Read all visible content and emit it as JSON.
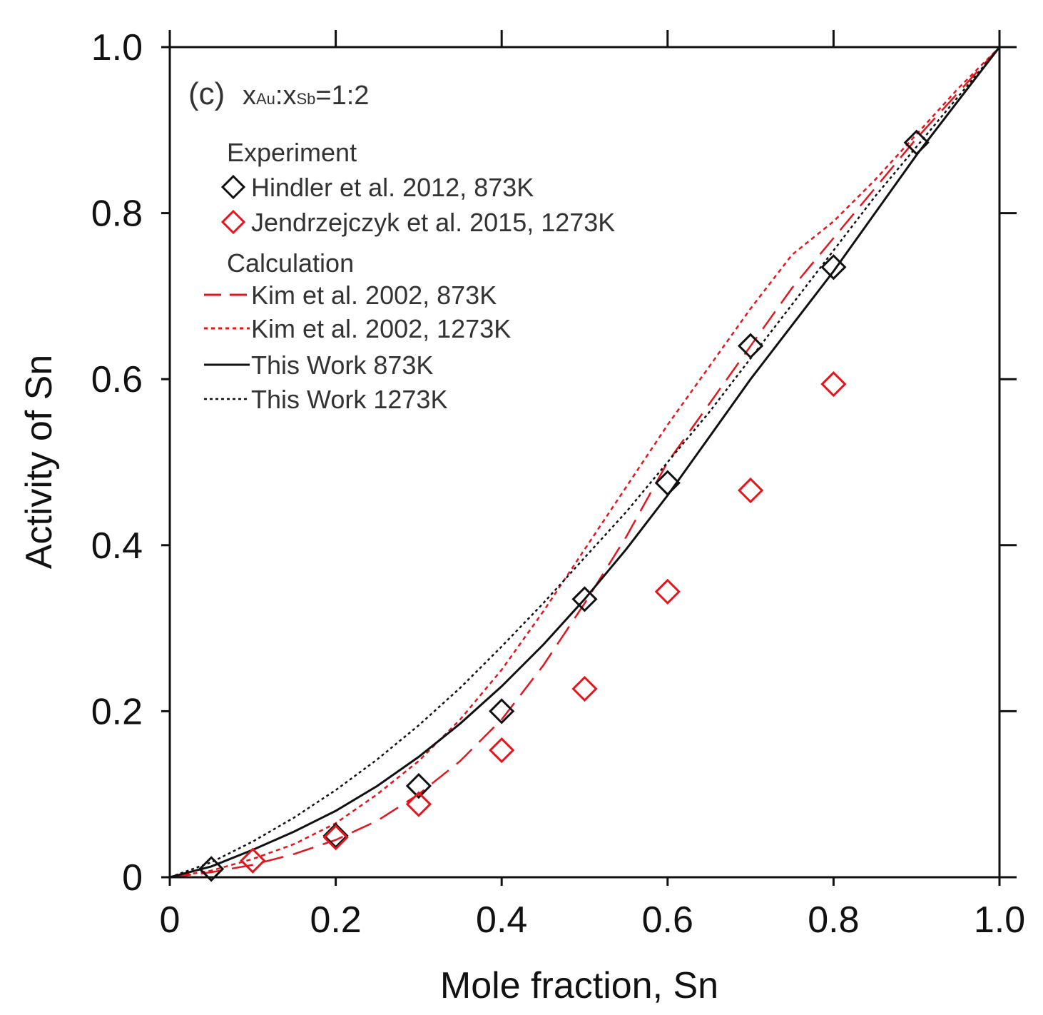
{
  "chart_data": {
    "type": "line",
    "panel_label": "(c)",
    "composition_prefix": "x",
    "composition_sub1": "Au",
    "composition_sep": ":x",
    "composition_sub2": "Sb",
    "composition_value": "=1:2",
    "xlabel": "Mole fraction, Sn",
    "ylabel": "Activity of Sn",
    "xlim": [
      0,
      1
    ],
    "ylim": [
      0,
      1
    ],
    "x_ticks": [
      0,
      0.2,
      0.4,
      0.6,
      0.8,
      1.0
    ],
    "x_tick_labels": [
      "0",
      "0.2",
      "0.4",
      "0.6",
      "0.8",
      "1.0"
    ],
    "y_ticks": [
      0,
      0.2,
      0.4,
      0.6,
      0.8,
      1.0
    ],
    "y_tick_labels": [
      "0",
      "0.2",
      "0.4",
      "0.6",
      "0.8",
      "1.0"
    ],
    "grid": false,
    "legend_position": "top-left",
    "legend_groups": {
      "experiment": "Experiment",
      "calculation": "Calculation"
    },
    "colors": {
      "black": "#111111",
      "red": "#e8141c"
    },
    "experiments": [
      {
        "name": "Hindler et al. 2012, 873K",
        "color": "#111111",
        "marker": "diamond",
        "x": [
          0.05,
          0.2,
          0.3,
          0.4,
          0.5,
          0.6,
          0.7,
          0.8,
          0.9
        ],
        "y": [
          0.01,
          0.05,
          0.11,
          0.2,
          0.335,
          0.475,
          0.64,
          0.735,
          0.885
        ]
      },
      {
        "name": "Jendrzejczyk et al. 2015, 1273K",
        "color": "#e8141c",
        "marker": "diamond",
        "x": [
          0.1,
          0.2,
          0.3,
          0.4,
          0.5,
          0.6,
          0.7,
          0.8
        ],
        "y": [
          0.02,
          0.048,
          0.088,
          0.153,
          0.227,
          0.344,
          0.466,
          0.594
        ]
      }
    ],
    "calculations": [
      {
        "name": "Kim et al. 2002, 873K",
        "color": "#e8141c",
        "style": "dashed",
        "x": [
          0,
          0.05,
          0.1,
          0.15,
          0.2,
          0.25,
          0.3,
          0.35,
          0.4,
          0.45,
          0.5,
          0.55,
          0.6,
          0.65,
          0.7,
          0.75,
          0.8,
          0.85,
          0.9,
          0.95,
          1.0
        ],
        "y": [
          0,
          0.006,
          0.015,
          0.028,
          0.045,
          0.068,
          0.1,
          0.14,
          0.19,
          0.255,
          0.33,
          0.41,
          0.5,
          0.57,
          0.64,
          0.71,
          0.77,
          0.83,
          0.89,
          0.945,
          1.0
        ]
      },
      {
        "name": "Kim et al. 2002, 1273K",
        "color": "#e8141c",
        "style": "dotted",
        "x": [
          0,
          0.05,
          0.1,
          0.15,
          0.2,
          0.25,
          0.3,
          0.35,
          0.4,
          0.45,
          0.5,
          0.55,
          0.6,
          0.65,
          0.7,
          0.75,
          0.8,
          0.85,
          0.9,
          0.95,
          1.0
        ],
        "y": [
          0,
          0.008,
          0.022,
          0.04,
          0.065,
          0.1,
          0.14,
          0.19,
          0.25,
          0.32,
          0.395,
          0.47,
          0.545,
          0.615,
          0.685,
          0.75,
          0.79,
          0.84,
          0.895,
          0.95,
          1.0
        ]
      },
      {
        "name": "This Work 873K",
        "color": "#111111",
        "style": "solid",
        "x": [
          0,
          0.05,
          0.1,
          0.15,
          0.2,
          0.25,
          0.3,
          0.35,
          0.4,
          0.45,
          0.5,
          0.55,
          0.6,
          0.65,
          0.7,
          0.75,
          0.8,
          0.85,
          0.9,
          0.95,
          1.0
        ],
        "y": [
          0,
          0.013,
          0.033,
          0.055,
          0.08,
          0.11,
          0.145,
          0.185,
          0.23,
          0.28,
          0.335,
          0.395,
          0.46,
          0.53,
          0.6,
          0.665,
          0.73,
          0.8,
          0.87,
          0.935,
          1.0
        ]
      },
      {
        "name": "This Work 1273K",
        "color": "#111111",
        "style": "fine-dotted",
        "x": [
          0,
          0.05,
          0.1,
          0.15,
          0.2,
          0.25,
          0.3,
          0.35,
          0.4,
          0.45,
          0.5,
          0.55,
          0.6,
          0.65,
          0.7,
          0.75,
          0.8,
          0.85,
          0.9,
          0.95,
          1.0
        ],
        "y": [
          0,
          0.018,
          0.043,
          0.072,
          0.105,
          0.142,
          0.183,
          0.228,
          0.278,
          0.33,
          0.385,
          0.44,
          0.5,
          0.56,
          0.625,
          0.69,
          0.755,
          0.82,
          0.88,
          0.94,
          1.0
        ]
      }
    ]
  }
}
